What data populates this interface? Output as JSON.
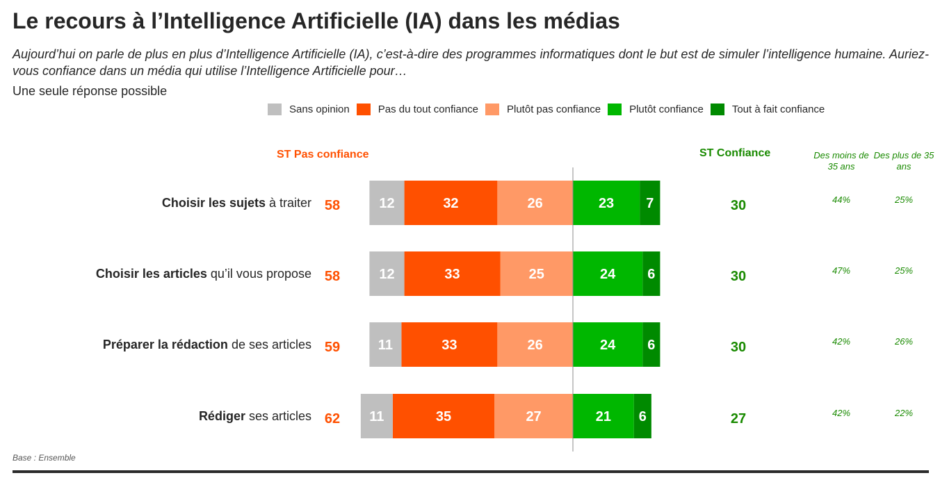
{
  "title": "Le recours à l’Intelligence Artificielle (IA) dans les médias",
  "subtitle": "Aujourd’hui on parle de plus en plus d’Intelligence Artificielle (IA), c’est-à-dire des programmes informatiques dont le but est de simuler l’intelligence humaine. Auriez-vous confiance dans un média qui utilise l’Intelligence Artificielle pour…",
  "note": "Une seule réponse possible",
  "base": "Base : Ensemble",
  "headers": {
    "st_pas_confiance": "ST Pas confiance",
    "st_confiance": "ST Confiance",
    "age_under_35": "Des moins de 35 ans",
    "age_over_35": "Des plus de 35 ans"
  },
  "colors": {
    "sans_opinion": "#bfbfbf",
    "pas_du_tout": "#ff5000",
    "plutot_pas": "#ff9966",
    "plutot": "#00b700",
    "tout_a_fait": "#008a00",
    "st_pas_text": "#ff5000",
    "st_conf_text": "#198a00"
  },
  "chart_data": {
    "type": "bar",
    "stacked": true,
    "orientation": "horizontal",
    "diverging": true,
    "categories": [
      {
        "bold": "Choisir les sujets",
        "rest": " à traiter"
      },
      {
        "bold": "Choisir les articles",
        "rest": " qu’il vous propose"
      },
      {
        "bold": "Préparer la rédaction",
        "rest": " de ses articles"
      },
      {
        "bold": "Rédiger",
        "rest": " ses articles"
      }
    ],
    "series": [
      {
        "name": "Sans opinion",
        "key": "sans_opinion",
        "side": "negative",
        "values": [
          12,
          12,
          11,
          11
        ]
      },
      {
        "name": "Pas du tout confiance",
        "key": "pas_du_tout",
        "side": "negative",
        "values": [
          32,
          33,
          33,
          35
        ]
      },
      {
        "name": "Plutôt pas confiance",
        "key": "plutot_pas",
        "side": "negative",
        "values": [
          26,
          25,
          26,
          27
        ]
      },
      {
        "name": "Plutôt confiance",
        "key": "plutot",
        "side": "positive",
        "values": [
          23,
          24,
          24,
          21
        ]
      },
      {
        "name": "Tout à fait confiance",
        "key": "tout_a_fait",
        "side": "positive",
        "values": [
          7,
          6,
          6,
          6
        ]
      }
    ],
    "st_pas_confiance": [
      58,
      58,
      59,
      62
    ],
    "st_confiance": [
      30,
      30,
      30,
      27
    ],
    "age_under_35": [
      "44%",
      "47%",
      "42%",
      "42%"
    ],
    "age_over_35": [
      "25%",
      "25%",
      "26%",
      "22%"
    ]
  }
}
